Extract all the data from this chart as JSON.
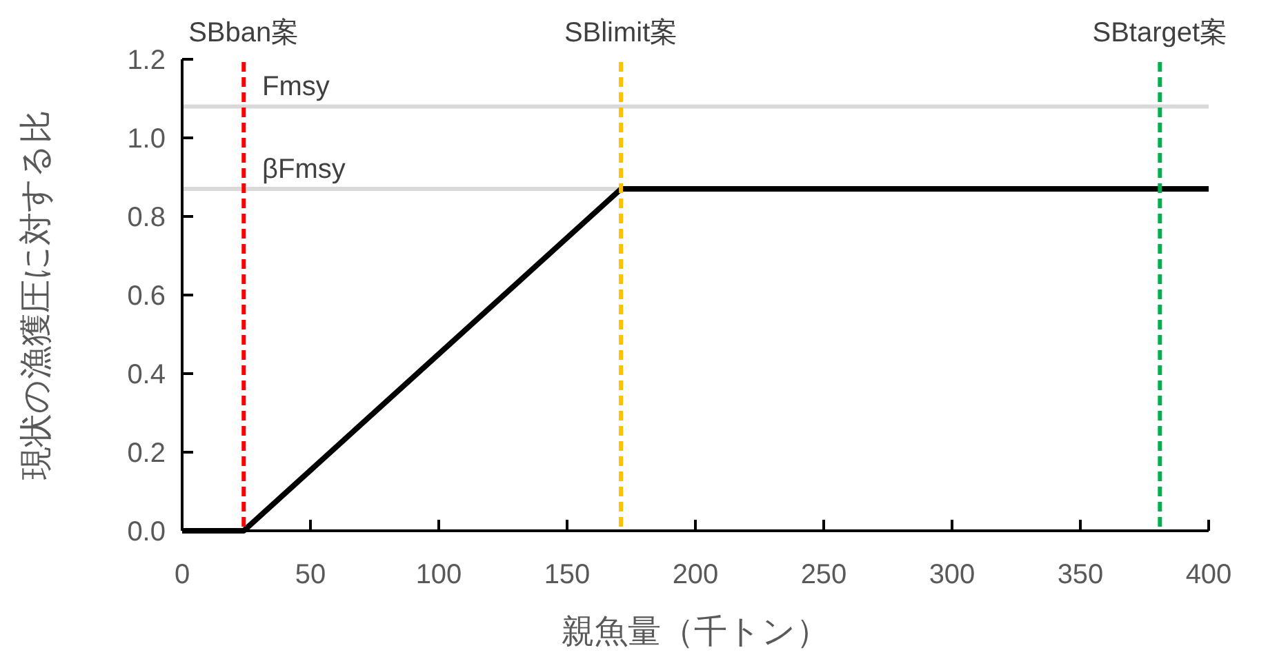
{
  "chart_data": {
    "type": "line",
    "xlabel": "親魚量（千トン）",
    "ylabel": "現状の漁獲圧に対する比",
    "x": [
      0,
      24,
      171,
      400
    ],
    "series": [
      {
        "color": "#000000",
        "values": [
          0,
          0,
          0.87,
          0.87
        ]
      }
    ],
    "xlim": [
      0,
      400
    ],
    "xticks": [
      0,
      50,
      100,
      150,
      200,
      250,
      300,
      350,
      400
    ],
    "ylim": [
      0,
      1.2
    ],
    "yticks": [
      {
        "value": 0,
        "label": "0.0"
      },
      {
        "value": 0.2,
        "label": "0.2"
      },
      {
        "value": 0.4,
        "label": "0.4"
      },
      {
        "value": 0.6,
        "label": "0.6"
      },
      {
        "value": 0.8,
        "label": "0.8"
      },
      {
        "value": 1.0,
        "label": "1.0"
      },
      {
        "value": 1.2,
        "label": "1.2"
      }
    ],
    "ref_lines": [
      {
        "axis": "y",
        "value": 1.08,
        "label": "Fmsy",
        "color": "#d9d9d9",
        "line_style": "solid"
      },
      {
        "axis": "y",
        "value": 0.87,
        "label": "βFmsy",
        "color": "#d9d9d9",
        "line_style": "solid"
      },
      {
        "axis": "x",
        "value": 24,
        "label": "SBban案",
        "color": "#ff0000",
        "line_style": "dashed"
      },
      {
        "axis": "x",
        "value": 171,
        "label": "SBlimit案",
        "color": "#ffc000",
        "line_style": "dashed"
      },
      {
        "axis": "x",
        "value": 381,
        "label": "SBtarget案",
        "color": "#00b050",
        "line_style": "dashed"
      }
    ],
    "grid": false,
    "marker": "none",
    "line_style": "solid"
  }
}
